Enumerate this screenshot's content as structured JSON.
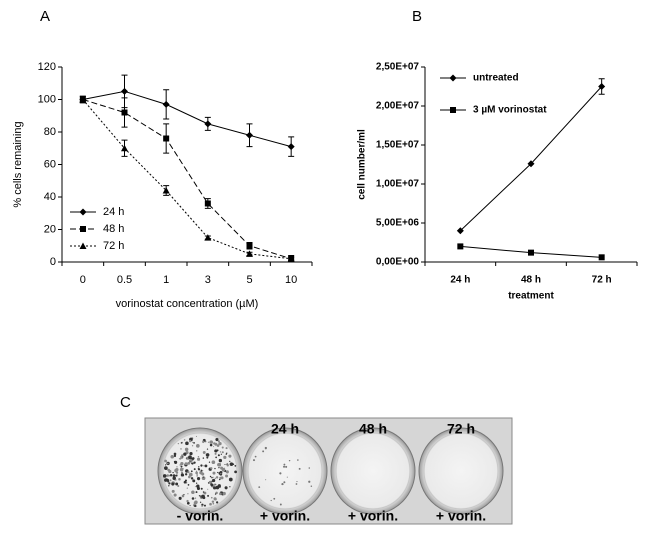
{
  "panel_labels": [
    "A",
    "B",
    "C"
  ],
  "chart_data": [
    {
      "type": "line",
      "x_label": "vorinostat concentration (µM)",
      "y_label": "% cells remaining",
      "categories": [
        "0",
        "0.5",
        "1",
        "3",
        "5",
        "10"
      ],
      "ylim": [
        0,
        120
      ],
      "yticks": [
        0,
        20,
        40,
        60,
        80,
        100,
        120
      ],
      "series": [
        {
          "name": "24 h",
          "color": "#000000",
          "dash": "solid",
          "marker": "diamond",
          "values": [
            100,
            105,
            97,
            85,
            78,
            71
          ],
          "errors": [
            0,
            10,
            9,
            4,
            7,
            6
          ]
        },
        {
          "name": "48 h",
          "color": "#000000",
          "dash": "dashed",
          "marker": "square",
          "values": [
            100,
            92,
            76,
            36,
            10,
            2
          ],
          "errors": [
            2,
            9,
            9,
            3,
            2,
            2
          ]
        },
        {
          "name": "72 h",
          "color": "#000000",
          "dash": "dotted",
          "marker": "triangle",
          "values": [
            100,
            70,
            44,
            15,
            5,
            2
          ],
          "errors": [
            2,
            5,
            3,
            1,
            1,
            1
          ]
        }
      ]
    },
    {
      "type": "line",
      "x_label": "treatment",
      "y_label": "cell number/ml",
      "categories": [
        "24 h",
        "48 h",
        "72 h"
      ],
      "ylim": [
        0,
        25000000
      ],
      "yticks": [
        {
          "value": 0,
          "label": "0,00E+00"
        },
        {
          "value": 5000000,
          "label": "5,00E+06"
        },
        {
          "value": 10000000,
          "label": "1,00E+07"
        },
        {
          "value": 15000000,
          "label": "1,50E+07"
        },
        {
          "value": 20000000,
          "label": "2,00E+07"
        },
        {
          "value": 25000000,
          "label": "2,50E+07"
        }
      ],
      "series": [
        {
          "name": "untreated",
          "color": "#000000",
          "dash": "solid",
          "marker": "diamond",
          "values": [
            4000000,
            12600000,
            22500000
          ],
          "errors": [
            0,
            0,
            1000000
          ]
        },
        {
          "name": "3 µM vorinostat",
          "color": "#000000",
          "dash": "solid",
          "marker": "square",
          "values": [
            2000000,
            1200000,
            600000
          ],
          "errors": [
            0,
            0,
            0
          ]
        }
      ]
    }
  ],
  "photo": {
    "column_labels": [
      "24 h",
      "48 h",
      "72 h"
    ],
    "dish_labels": [
      "- vorin.",
      "+ vorin.",
      "+ vorin.",
      "+ vorin."
    ]
  }
}
